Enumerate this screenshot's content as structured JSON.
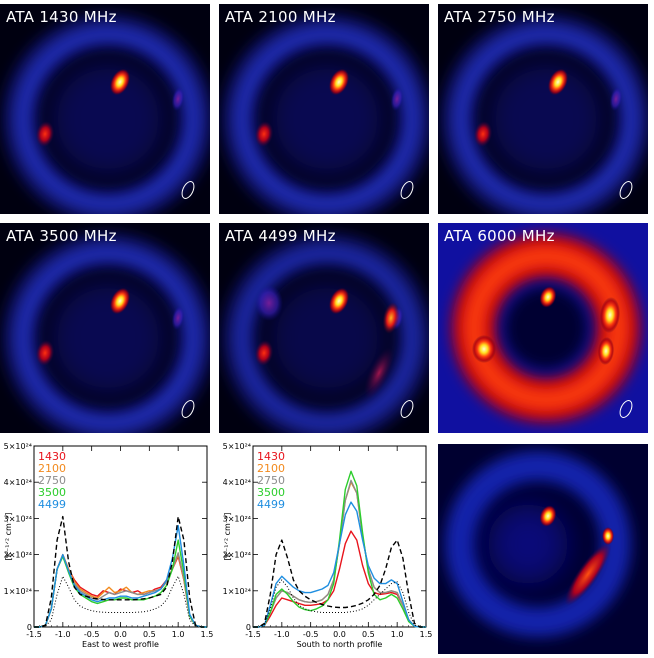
{
  "panels": [
    {
      "label": "ATA 1430 MHz",
      "variant": "a"
    },
    {
      "label": "ATA 2100 MHz",
      "variant": "a"
    },
    {
      "label": "ATA 2750 MHz",
      "variant": "a"
    },
    {
      "label": "ATA 3500 MHz",
      "variant": "a"
    },
    {
      "label": "ATA 4499 MHz",
      "variant": "b"
    },
    {
      "label": "ATA 6000 MHz",
      "variant": "c"
    },
    {
      "label": "",
      "variant": "d"
    }
  ],
  "colors": {
    "1430": "#e8141c",
    "2100": "#f28a1e",
    "2750": "#8c8c8c",
    "3500": "#2ccd2c",
    "4499": "#1f8ee0"
  },
  "chart_data": [
    {
      "type": "line",
      "xlabel": "East to west profile",
      "ylabel": "[K⁻¹ᐟ² cm⁻³]",
      "xlim": [
        -1.5,
        1.5
      ],
      "ylim": [
        0,
        5e+24
      ],
      "xticks": [
        "-1.5",
        "-1.0",
        "-0.5",
        "0.0",
        "0.5",
        "1.0",
        "1.5"
      ],
      "yticks": [
        "0",
        "1×10²⁴",
        "2×10²⁴",
        "3×10²⁴",
        "4×10²⁴",
        "5×10²⁴"
      ],
      "legend": [
        "1430",
        "2100",
        "2750",
        "3500",
        "4499"
      ],
      "x": [
        -1.5,
        -1.4,
        -1.3,
        -1.2,
        -1.1,
        -1.0,
        -0.9,
        -0.8,
        -0.7,
        -0.6,
        -0.5,
        -0.4,
        -0.3,
        -0.2,
        -0.1,
        0.0,
        0.1,
        0.2,
        0.3,
        0.4,
        0.5,
        0.6,
        0.7,
        0.8,
        0.9,
        1.0,
        1.1,
        1.2,
        1.3,
        1.4,
        1.5
      ],
      "series": [
        {
          "name": "1430",
          "values": [
            0,
            0,
            0.05,
            0.5,
            1.6,
            2.0,
            1.6,
            1.3,
            1.1,
            1.0,
            0.9,
            0.85,
            1.0,
            0.95,
            0.9,
            1.05,
            1.0,
            0.95,
            1.0,
            0.9,
            0.95,
            1.05,
            1.1,
            1.3,
            1.6,
            1.95,
            1.3,
            0.3,
            0.05,
            0,
            0
          ]
        },
        {
          "name": "2100",
          "values": [
            0,
            0,
            0.05,
            0.5,
            1.6,
            2.0,
            1.6,
            1.25,
            1.05,
            0.95,
            0.85,
            0.8,
            0.95,
            1.1,
            0.95,
            1.0,
            1.1,
            0.95,
            0.9,
            0.95,
            1.0,
            1.0,
            1.05,
            1.25,
            1.6,
            2.0,
            1.3,
            0.3,
            0.05,
            0,
            0
          ]
        },
        {
          "name": "2750",
          "values": [
            0,
            0,
            0.05,
            0.5,
            1.6,
            1.95,
            1.55,
            1.2,
            1.0,
            0.9,
            0.8,
            0.75,
            0.85,
            0.95,
            0.9,
            0.95,
            1.0,
            0.95,
            0.9,
            0.9,
            0.95,
            1.0,
            1.05,
            1.25,
            1.6,
            2.05,
            1.35,
            0.3,
            0.05,
            0,
            0
          ]
        },
        {
          "name": "3500",
          "values": [
            0,
            0,
            0.05,
            0.5,
            1.6,
            1.95,
            1.5,
            1.1,
            0.9,
            0.8,
            0.7,
            0.65,
            0.7,
            0.75,
            0.75,
            0.8,
            0.8,
            0.75,
            0.75,
            0.75,
            0.8,
            0.85,
            0.95,
            1.15,
            1.6,
            2.4,
            1.5,
            0.3,
            0.05,
            0,
            0
          ]
        },
        {
          "name": "4499",
          "values": [
            0,
            0,
            0.05,
            0.5,
            1.6,
            2.0,
            1.55,
            1.15,
            0.95,
            0.85,
            0.75,
            0.7,
            0.75,
            0.8,
            0.8,
            0.85,
            0.85,
            0.8,
            0.8,
            0.85,
            0.9,
            0.95,
            1.05,
            1.3,
            1.9,
            2.8,
            1.7,
            0.35,
            0.05,
            0,
            0
          ]
        },
        {
          "name": "",
          "style": "dashed",
          "values": [
            0,
            0,
            0.05,
            0.8,
            2.4,
            3.05,
            1.8,
            1.1,
            0.9,
            0.85,
            0.8,
            0.78,
            0.76,
            0.75,
            0.75,
            0.75,
            0.75,
            0.75,
            0.76,
            0.78,
            0.8,
            0.85,
            0.9,
            1.1,
            1.8,
            3.05,
            2.4,
            0.8,
            0.05,
            0,
            0
          ]
        },
        {
          "name": "",
          "style": "dotted",
          "values": [
            0,
            0,
            0.02,
            0.2,
            0.9,
            1.4,
            1.1,
            0.75,
            0.58,
            0.5,
            0.45,
            0.42,
            0.41,
            0.4,
            0.4,
            0.4,
            0.4,
            0.4,
            0.41,
            0.42,
            0.45,
            0.5,
            0.58,
            0.75,
            1.1,
            1.4,
            0.9,
            0.2,
            0.02,
            0,
            0
          ]
        }
      ]
    },
    {
      "type": "line",
      "xlabel": "South to north profile",
      "ylabel": "[K⁻¹ᐟ² cm⁻³]",
      "xlim": [
        -1.5,
        1.5
      ],
      "ylim": [
        0,
        5e+24
      ],
      "xticks": [
        "-1.5",
        "-1.0",
        "-0.5",
        "0.0",
        "0.5",
        "1.0",
        "1.5"
      ],
      "yticks": [
        "0",
        "1×10²⁴",
        "2×10²⁴",
        "3×10²⁴",
        "4×10²⁴",
        "5×10²⁴"
      ],
      "legend": [
        "1430",
        "2100",
        "2750",
        "3500",
        "4499"
      ],
      "x": [
        -1.5,
        -1.4,
        -1.3,
        -1.2,
        -1.1,
        -1.0,
        -0.9,
        -0.8,
        -0.7,
        -0.6,
        -0.5,
        -0.4,
        -0.3,
        -0.2,
        -0.1,
        0.0,
        0.1,
        0.2,
        0.3,
        0.4,
        0.5,
        0.6,
        0.7,
        0.8,
        0.9,
        1.0,
        1.1,
        1.2,
        1.3,
        1.4,
        1.5
      ],
      "series": [
        {
          "name": "1430",
          "values": [
            0,
            0,
            0.05,
            0.3,
            0.6,
            0.8,
            0.75,
            0.7,
            0.65,
            0.6,
            0.6,
            0.62,
            0.65,
            0.75,
            1.0,
            1.6,
            2.3,
            2.65,
            2.4,
            1.7,
            1.2,
            0.95,
            0.9,
            0.92,
            0.95,
            0.9,
            0.6,
            0.2,
            0.02,
            0,
            0
          ]
        },
        {
          "name": "2100",
          "values": [
            0,
            0,
            0.05,
            0.4,
            0.8,
            1.0,
            0.95,
            0.85,
            0.75,
            0.7,
            0.68,
            0.7,
            0.75,
            0.9,
            1.3,
            2.3,
            3.5,
            4.0,
            3.7,
            2.5,
            1.6,
            1.1,
            0.95,
            0.95,
            1.0,
            0.95,
            0.6,
            0.2,
            0.02,
            0,
            0
          ]
        },
        {
          "name": "2750",
          "values": [
            0,
            0,
            0.05,
            0.4,
            0.8,
            1.0,
            0.95,
            0.85,
            0.75,
            0.7,
            0.68,
            0.7,
            0.75,
            0.9,
            1.3,
            2.3,
            3.5,
            4.05,
            3.7,
            2.5,
            1.6,
            1.1,
            0.95,
            0.95,
            1.0,
            0.95,
            0.6,
            0.2,
            0.02,
            0,
            0
          ]
        },
        {
          "name": "3500",
          "values": [
            0,
            0,
            0.05,
            0.4,
            0.9,
            1.05,
            0.9,
            0.7,
            0.55,
            0.48,
            0.45,
            0.5,
            0.58,
            0.75,
            1.2,
            2.4,
            3.8,
            4.3,
            3.9,
            2.6,
            1.5,
            0.9,
            0.75,
            0.8,
            0.9,
            0.8,
            0.5,
            0.15,
            0.02,
            0,
            0
          ]
        },
        {
          "name": "4499",
          "values": [
            0,
            0,
            0.05,
            0.6,
            1.2,
            1.4,
            1.25,
            1.1,
            1.0,
            0.95,
            0.95,
            1.0,
            1.05,
            1.15,
            1.5,
            2.3,
            3.1,
            3.45,
            3.2,
            2.4,
            1.7,
            1.35,
            1.2,
            1.2,
            1.3,
            1.2,
            0.7,
            0.2,
            0.02,
            0,
            0
          ]
        },
        {
          "name": "",
          "style": "dashed",
          "values": [
            0,
            0,
            0.1,
            0.9,
            2.0,
            2.4,
            1.9,
            1.3,
            1.0,
            0.85,
            0.75,
            0.68,
            0.62,
            0.58,
            0.55,
            0.54,
            0.54,
            0.56,
            0.6,
            0.66,
            0.75,
            0.9,
            1.15,
            1.6,
            2.2,
            2.4,
            1.9,
            0.9,
            0.1,
            0,
            0
          ]
        },
        {
          "name": "",
          "style": "dotted",
          "values": [
            0,
            0,
            0.05,
            0.5,
            1.1,
            1.3,
            1.1,
            0.8,
            0.6,
            0.5,
            0.45,
            0.42,
            0.4,
            0.4,
            0.4,
            0.4,
            0.4,
            0.42,
            0.45,
            0.5,
            0.6,
            0.75,
            0.9,
            1.05,
            1.2,
            1.25,
            0.95,
            0.4,
            0.05,
            0,
            0
          ]
        }
      ]
    }
  ]
}
